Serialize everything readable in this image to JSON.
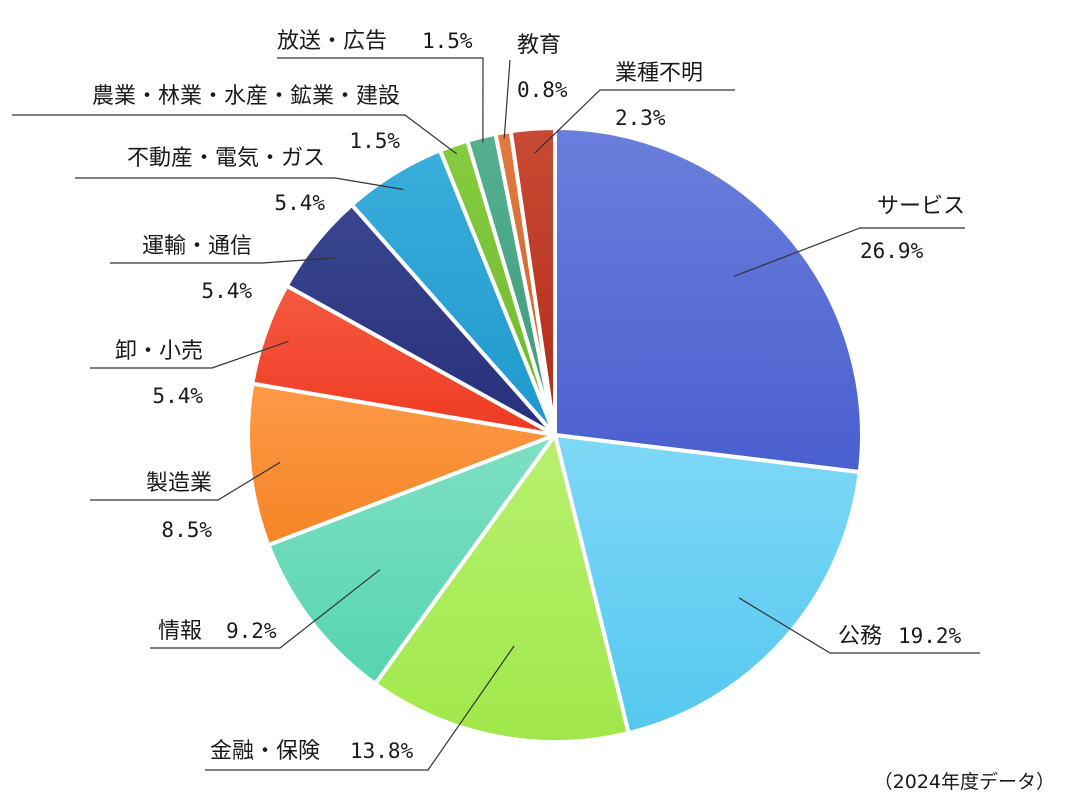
{
  "chart_data": {
    "type": "pie",
    "title": "",
    "unit": "%",
    "slices": [
      {
        "label": "サービス",
        "value": 26.9,
        "value_text": "26.9%",
        "color": "#4a5fcf",
        "color_light": "#6a7fdc"
      },
      {
        "label": "公務",
        "value": 19.2,
        "value_text": "19.2%",
        "color": "#55c8f0",
        "color_light": "#7fd8f6"
      },
      {
        "label": "金融・保険",
        "value": 13.8,
        "value_text": "13.8%",
        "color": "#a0e84a",
        "color_light": "#b8f070"
      },
      {
        "label": "情報",
        "value": 9.2,
        "value_text": "9.2%",
        "color": "#55d4b0",
        "color_light": "#7ee0c4"
      },
      {
        "label": "製造業",
        "value": 8.5,
        "value_text": "8.5%",
        "color": "#f58425",
        "color_light": "#ff9a48"
      },
      {
        "label": "卸・小売",
        "value": 5.4,
        "value_text": "5.4%",
        "color": "#ee3a22",
        "color_light": "#f55a40"
      },
      {
        "label": "運輸・通信",
        "value": 5.4,
        "value_text": "5.4%",
        "color": "#27307a",
        "color_light": "#3a4590"
      },
      {
        "label": "不動産・電気・ガス",
        "value": 5.4,
        "value_text": "5.4%",
        "color": "#1e98cc",
        "color_light": "#3aaedc"
      },
      {
        "label": "農業・林業・水産・鉱業・建設",
        "value": 1.5,
        "value_text": "1.5%",
        "color": "#6cb82a",
        "color_light": "#86cc40"
      },
      {
        "label": "放送・広告",
        "value": 1.5,
        "value_text": "1.5%",
        "color": "#3a9a7a",
        "color_light": "#55b090"
      },
      {
        "label": "教育",
        "value": 0.8,
        "value_text": "0.8%",
        "color": "#d0602a",
        "color_light": "#e07a40"
      },
      {
        "label": "業種不明",
        "value": 2.3,
        "value_text": "2.3%",
        "color": "#b02a18",
        "color_light": "#c84a34"
      }
    ]
  },
  "footnote": "（2024年度データ）"
}
